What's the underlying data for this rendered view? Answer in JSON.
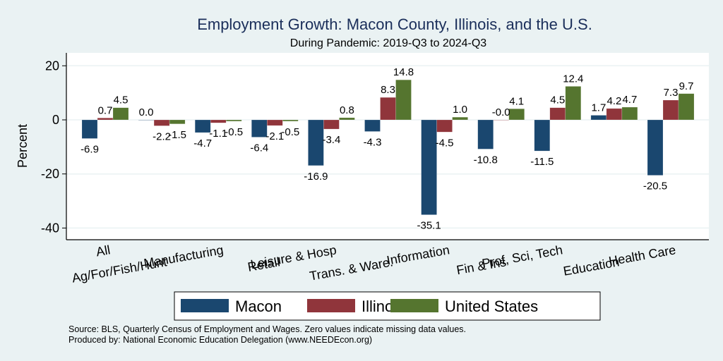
{
  "chart_data": {
    "type": "bar",
    "title": "Employment Growth: Macon County, Illinois, and the U.S.",
    "subtitle": "During Pandemic: 2019-Q3 to 2024-Q3",
    "xlabel": "",
    "ylabel": "Percent",
    "ylim": [
      -44.5,
      24.5
    ],
    "yticks": [
      20,
      0,
      -20,
      -40
    ],
    "grid": true,
    "legend_position": "bottom",
    "categories": [
      "All",
      "Ag/For/Fish/Hunt",
      "Manufacturing",
      "Retail",
      "Leisure & Hosp",
      "Trans. & Ware.",
      "Information",
      "Fin & Ins",
      "Prof, Sci, Tech",
      "Education",
      "Health Care"
    ],
    "series": [
      {
        "name": "Macon",
        "color": "#1a476f",
        "values": [
          -6.9,
          0.0,
          -4.7,
          -6.4,
          -16.9,
          -4.3,
          -35.1,
          -10.8,
          -11.5,
          1.7,
          -20.5
        ]
      },
      {
        "name": "Illinois",
        "color": "#90353b",
        "values": [
          0.7,
          -2.2,
          -1.1,
          -2.1,
          -3.4,
          8.3,
          -4.5,
          -0.0,
          4.5,
          4.2,
          7.3
        ]
      },
      {
        "name": "United States",
        "color": "#55752f",
        "values": [
          4.5,
          -1.5,
          -0.5,
          -0.5,
          0.8,
          14.8,
          1.0,
          4.1,
          12.4,
          4.7,
          9.7
        ]
      }
    ],
    "data_labels": [
      [
        "-6.9",
        "0.0",
        "-4.7",
        "-6.4",
        "-16.9",
        "-4.3",
        "-35.1",
        "-10.8",
        "-11.5",
        "1.7",
        "-20.5"
      ],
      [
        "0.7",
        "-2.2",
        "-1.1",
        "-2.1",
        "-3.4",
        "8.3",
        "-4.5",
        "-0.0",
        "4.5",
        "4.2",
        "7.3"
      ],
      [
        "4.5",
        "-1.5",
        "-0.5",
        "-0.5",
        "0.8",
        "14.8",
        "1.0",
        "4.1",
        "12.4",
        "4.7",
        "9.7"
      ]
    ]
  },
  "notes": {
    "source": "Source: BLS, Quarterly Census of Employment and Wages. Zero values indicate missing data values.",
    "produced_by": "Produced by: National Economic Education Delegation (www.NEEDEcon.org)"
  }
}
